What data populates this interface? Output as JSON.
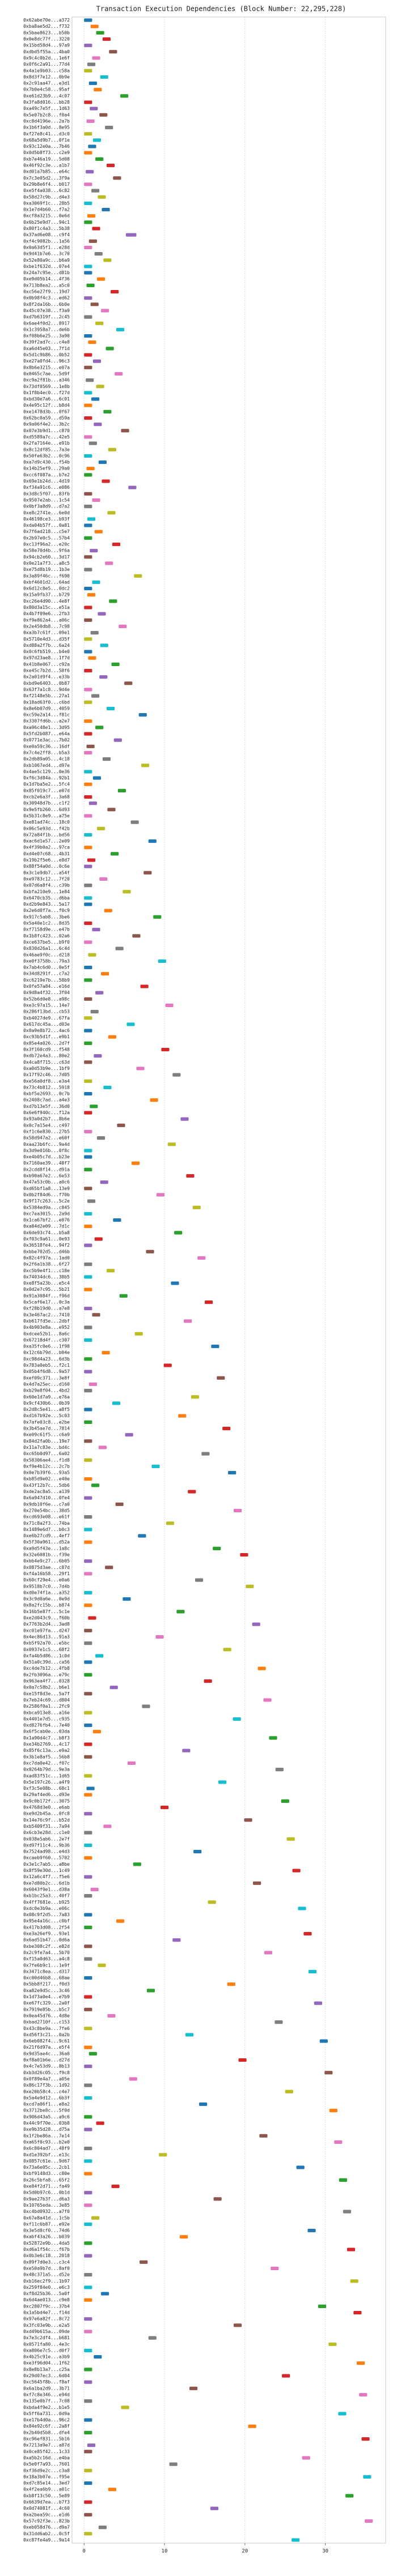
{
  "chart_data": {
    "type": "gantt",
    "title": "Transaction Execution Dependencies (Block Number: 22,295,228)",
    "xlim": [
      -1.5,
      37.5
    ],
    "xticks": [
      0,
      10,
      20,
      30
    ],
    "grid": true,
    "colors": [
      "#1f77b4",
      "#ff7f0e",
      "#2ca02c",
      "#d62728",
      "#9467bd",
      "#8c564b",
      "#e377c2",
      "#7f7f7f",
      "#bcbd22",
      "#17becf"
    ],
    "categories": [
      "0x62abe70e...a372",
      "0xba8ae5d2...f732",
      "0x5bae8623...b50b",
      "0x0e8dc77f...3220",
      "0x15bd58d4...97a9",
      "0xdbd5f55a...4ba0",
      "0x9c4c0b2d...1e6f",
      "0x0f6c2a91...77d4",
      "0x4a1e9b03...c58a",
      "0x8d3f7e12...0b9e",
      "0x2c91aa47...e3d1",
      "0x7b0e4c58...95af",
      "0xe61d23b9...4c07",
      "0x3fa8d016...bb28",
      "0xa49c7e5f...1d63",
      "0x5e07b2c8...f0a4",
      "0xc8d4196e...2a7b",
      "0x1b6f3a0d...8e95",
      "0xf27e8c41...d3c0",
      "0x68a5d9b7...0f1e",
      "0x93c12e0a...7b46",
      "0x0d5b8f73...c2e9",
      "0xb7e46a19...5d08",
      "0x46f92c3e...a1b7",
      "0xd01a7b85...e64c",
      "0x7c3e05d2...3f9a",
      "0x29b8e6f4...b017",
      "0xe5f4a038...6c82",
      "0x58d27c9b...d4e3",
      "0xa3069f1c...28b5",
      "0x1e7d4b60...f7a2",
      "0xcf8a3215...0e6d",
      "0x6b25e9d7...94c1",
      "0x80f1c4a3...5b38",
      "0x37ad6e08...c9f4",
      "0xf4c9082b...1a56",
      "0x0a63d5f1...e28d",
      "0x9d41b7e6...3c70",
      "0x52e80a9c...b6a9",
      "0xbe1f632d...07e4",
      "0x24a7c95e...d81b",
      "0xe9d05b14...4f36",
      "0x713b8ea2...a5c0",
      "0xc56e27f9...19d7",
      "0x0b98f4c3...ed62",
      "0x8f2da16b...6b0e",
      "0x45c07e38...f3a9",
      "0xd7b6319f...2c45",
      "0x6ae4f0d2...8917",
      "0x1c3958a7...de6b",
      "0xf08b6e25...3a90",
      "0x39f2ad7c...c4e8",
      "0xa6d45e03...7f1d",
      "0x5d1c9b86...0b52",
      "0xe27a0fd4...96c3",
      "0x8b6e3215...e07a",
      "0x0465c7ae...5d9f",
      "0xc9a2f81b...a346",
      "0x73df0569...1e8b",
      "0x1f8b4ec0...f27d",
      "0xbd30e7a6...6c01",
      "0x4e95c12f...b8d4",
      "0xe1478d3b...0f67",
      "0x62bc0a59...d59a",
      "0x9a06f4e2...3b2c",
      "0x07e3b9d1...c870",
      "0xd5589a7c...42e5",
      "0x2fa7164e...e91b",
      "0x8c12df85...7a3e",
      "0x50fe63b2...0c96",
      "0xa7d9c430...f54b",
      "0x14b25ef9...29a0",
      "0xcc6f087a...b7e2",
      "0x69e1b24d...4d19",
      "0xf34a91c6...e086",
      "0x3d8c5f07...83fb",
      "0x9507e2ab...1c54",
      "0x0bf3a8d9...d7a2",
      "0xe8c2741e...6e0d",
      "0x46198ce3...b93f",
      "0xda04b57f...0a81",
      "0x7f6ad218...c5e7",
      "0x2b97e0c5...57b4",
      "0xc13f96a2...e20c",
      "0x58e70d4b...9f6a",
      "0x94cb2e60...3d17",
      "0x0e21a7f3...a8c5",
      "0xe75d8b19...1b3e",
      "0x3a89f46c...f690",
      "0xbf4601d2...64ad",
      "0x6d12c8e5...0dc2",
      "0x15a9fb37...b729",
      "0xc26e4d90...4e8f",
      "0x80d3a15c...e51a",
      "0x4b7f09e6...2fb3",
      "0xf9e862a4...a06c",
      "0x2e450db8...7c98",
      "0xa3b7c61f...09e1",
      "0x5710e4d3...d35f",
      "0xd88a2f7b...6a24",
      "0x0c6fb519...b4e0",
      "0x97d23ae8...1f7d",
      "0x41b8e067...c92a",
      "0xe45c7b2d...58f6",
      "0x2a01d9f4...e33b",
      "0xbd9e6403...0b87",
      "0x63f7a1c8...9d4e",
      "0xf2148e5b...27a1",
      "0x18ad63f0...c6bd",
      "0x8e6b07d9...4059",
      "0xc59e2a14...f81c",
      "0x3307fd6b...a2e7",
      "0xa96c48e1...3d95",
      "0x5fd2b087...e64a",
      "0x0771e3ac...7b02",
      "0xe0a59c36...16df",
      "0x7c4e2ff8...b5a3",
      "0x2db89a05...4c18",
      "0xb1067ed4...d97e",
      "0x4ae5c129...0e36",
      "0xf6c3d84a...92b1",
      "0x1d7ba5e2...5fc4",
      "0x85f019c7...e07d",
      "0xcb2e6a3f...3a68",
      "0x30948d7b...c1f2",
      "0x9e5fb260...6d93",
      "0x5b31c8e9...a75e",
      "0xe81ad74c...18c0",
      "0x06c5e93d...f42b",
      "0x72a84f1b...bd56",
      "0xac6d1e57...2e09",
      "0x4f39b0a2...97ca",
      "0xd4e07c68...4b31",
      "0x19b2f5e6...e8d7",
      "0x88f54a0d...0c6e",
      "0x3c1e9db7...a54f",
      "0xe9783c12...7f20",
      "0x07d6a8f4...c39b",
      "0xbfa210e9...1e84",
      "0x6470cb35...d6ba",
      "0xd2b9e843...5a17",
      "0x2e6d0f7a...f0c9",
      "0x917c5ab8...3be6",
      "0x5a40e1c2...8d35",
      "0xf7158d9e...e47b",
      "0x1b8fc423...02a6",
      "0xce637be5...b9f0",
      "0x830d26a1...6c4d",
      "0x46ae9f0c...d218",
      "0xe0f3758b...79a3",
      "0x7ab4c6d0...0e5f",
      "0x34d8291f...c7a2",
      "0xc6219e7b...58b9",
      "0x0fe57a84...e16d",
      "0x9d8a4f32...3f04",
      "0x52b6d0e8...a98c",
      "0xe3c97a15...14e7",
      "0x286f13bd...cb53",
      "0xb4027de9...67fa",
      "0x617dc45a...d03e",
      "0x0a9e8b72...4ac6",
      "0xc93b5d1f...e9b1",
      "0x85e4a026...2d7f",
      "0x3f160cd9...f548",
      "0xdb72e4a3...80e2",
      "0x4ca8f715...c63d",
      "0xa0d53b9e...1bf9",
      "0x17f92c46...7d05",
      "0xe56a0df8...e3a4",
      "0x73c4b812...5918",
      "0xbf5e2693...0c7b",
      "0x2408c7ad...a4e3",
      "0xd7b13e5f...36d0",
      "0x6e6f940c...f12a",
      "0x93a0d2b7...8b6e",
      "0x0c7a15e4...c497",
      "0xf1c6e830...27b5",
      "0x58d947a2...e60f",
      "0xaa23b6fc...9a4d",
      "0x3d9e016b...0f8c",
      "0xe4b05c7d...b23e",
      "0x7160ae39...48f7",
      "0x2cdd8f14...d91a",
      "0xb90a67e2...6e53",
      "0x47e53c0b...a0c6",
      "0xd65bf1a8...13e9",
      "0x0b2f84d6...f70b",
      "0x9f17c263...5c2e",
      "0x5384ed9a...c845",
      "0xc7ea3015...2a9d",
      "0x1ca67bf2...e076",
      "0xa84d2e09...7d1c",
      "0x6de93c74...b5a8",
      "0xf03c9a61...0e93",
      "0x36518fe4...94f2",
      "0xbbe702d5...d46b",
      "0x82c4f97a...1ad0",
      "0x2f6a1b38...6f27",
      "0xc5b9e4f1...c18e",
      "0x74034dc6...38b5",
      "0xe8f5a23b...e5c4",
      "0x0d2e7c95...5b21",
      "0x91a3084f...f96d",
      "0x5caf6e17...0c3a",
      "0xf28b19d0...a7e8",
      "0x3e467ac2...7410",
      "0xb617fd5e...2dbf",
      "0x4b903e8a...e952",
      "0xdcee52b1...8a6c",
      "0x67218d4f...c307",
      "0xa35fc0e6...1f98",
      "0x12c6b79d...b04e",
      "0xc98d4a23...6d3b",
      "0x783a0eb5...f2c1",
      "0x05b4f6d8...9a57",
      "0xef09c371...3e8f",
      "0x4d7a25ec...d160",
      "0xb29e8f04...4bd2",
      "0x60e1d7a9...e76a",
      "0x9cf430b6...0b39",
      "0x2d8c5e41...a8f5",
      "0xd167b92e...5c03",
      "0x7afe03c8...e2be",
      "0x3b45ae7d...7814",
      "0xe09c61f5...c6a9",
      "0x84d2fa0b...19e7",
      "0x11a7c83e...bd4c",
      "0xc65b0d97...6a02",
      "0x58306ae4...f1d8",
      "0xf9e4b12c...2c7b",
      "0x0e7b39f6...93a5",
      "0xb85d9e02...e40e",
      "0x43f12b7c...5db6",
      "0xde2ac8a5...a139",
      "0x6a947d10...0fe4",
      "0x9db10f6e...c7a0",
      "0x270e54bc...38d5",
      "0xcd693e08...e61f",
      "0x71c8a2f3...74ba",
      "0x1489e6d7...b0c3",
      "0xe6b27cd9...4ef7",
      "0x5f30a961...d52a",
      "0xa9d5f43e...1a8c",
      "0x32e6081b...f39e",
      "0xbb4e9c27...6b05",
      "0x0875d3ae...c87d",
      "0xf4a16b58...29f1",
      "0x60cf29e4...e0a6",
      "0x9518b7c0...7d4b",
      "0xd0e74f1a...a352",
      "0x3c9d0a6e...0e9d",
      "0x8a2fc15b...b874",
      "0x16b5e87f...5c1e",
      "0xe2d043c9...f60b",
      "0x7763b2d4...3ad8",
      "0xc01e97fa...d247",
      "0x4ec86d13...91a3",
      "0xb5f92a70...e5bc",
      "0x0937e1c5...68f2",
      "0xfa4b5d86...1c0d",
      "0x51a0c39d...ca56",
      "0xc4de7b12...4fb8",
      "0x2fb3096a...e79c",
      "0x963ea4f7...0328",
      "0x0a7c58b2...b6e1",
      "0xe15f8d3e...5a7f",
      "0x7eb24c69...d804",
      "0x2586f0a1...2fc9",
      "0xbca913e8...a16e",
      "0x4401e7d5...c935",
      "0xd8276fb4...7e40",
      "0x6f5cab0e...03da",
      "0x1a90d4c7...b8f3",
      "0xe34b2769...4c17",
      "0x85f6c13a...e9a2",
      "0x3b1e8af5...56b8",
      "0xc7da0e42...f07c",
      "0x0264b79d...9e3a",
      "0xad83f51c...1d65",
      "0x5e197c26...a4f9",
      "0xf3c5e08b...68c1",
      "0x29af4ed6...d93e",
      "0x9c0b172f...3075",
      "0x4768d3e0...e6ab",
      "0xe9d2b45a...0fc8",
      "0x14e76c9f...b52d",
      "0xb5409f31...7a94",
      "0x6cb3e28d...c1e0",
      "0x038e5ab6...2e7f",
      "0xd97f11c4...9b36",
      "0x7524ad98...e4d3",
      "0xcaeb9f60...5702",
      "0x3e1c7ab5...a8be",
      "0x8f59e30d...1c49",
      "0x12a6c4f7...f5e6",
      "0xe7d80b2c...6d1b",
      "0x6043f9e1...d38a",
      "0xb1bc25a3...40f7",
      "0x4ff7681e...b925",
      "0xdc0e3b9a...e06c",
      "0x08c9f2d5...7a83",
      "0x95e4a16c...c0bf",
      "0x417b3d08...2f54",
      "0xe3a26ef9...93e1",
      "0x6ad51b47...0d6a",
      "0xbe308c2f...e82d",
      "0x2c9fe7a4...5b70",
      "0xf15a0d63...a4c8",
      "0x7fe6b9c1...1e9f",
      "0x3471c8ea...d317",
      "0xc00d46b8...68ae",
      "0x5bb8f217...f0d3",
      "0xa82e9d5c...3c46",
      "0x1d73a0e4...e7b9",
      "0xe67fc329...2a0f",
      "0x7919e85b...b5c7",
      "0x0ea45d76...4d8e",
      "0xbad2710f...c153",
      "0x43c8be9a...7fe6",
      "0xd56f3c21...0a2b",
      "0x6eb082f4...9c61",
      "0x21f6d97a...e5f4",
      "0x9d35ae4c...36a0",
      "0xf8a01b6e...d27d",
      "0x4c7e53d9...8b13",
      "0xb3d26c05...f9c8",
      "0x0f89e4a7...a05e",
      "0x86c17f3b...1d92",
      "0xe20b58c4...c4e7",
      "0x5a4e9d12...6b3f",
      "0xcd7a06f1...e8a2",
      "0x3712be8c...5f0d",
      "0x906d43a5...a9c6",
      "0x44c9f70e...03b8",
      "0xe9b35d28...d75a",
      "0x1f2be86a...7e14",
      "0xa65f0c93...b2e0",
      "0x6c804ad7...48f9",
      "0xd1e392bf...e13c",
      "0x0857c61e...9d67",
      "0x73a6e05c...2cb1",
      "0xbf9148d3...c80e",
      "0x26c5bfa8...65f2",
      "0xe84f2d71...fa49",
      "0x5d0b97c6...0b1d",
      "0x9ae27b3f...d6a3",
      "0x10765eda...3e85",
      "0xc4bd0932...a7f0",
      "0x67e8a41d...1c5b",
      "0xf11c6b87...e92e",
      "0x3e5d8cf0...74d6",
      "0xabf43a26...b039",
      "0x52872e9b...4da5",
      "0xd6a1f54c...f67b",
      "0x0b3e6c18...2018",
      "0x89f7d0e3...c3c4",
      "0xe50a9b7d...8af0",
      "0x48c371a5...d52e",
      "0xb16ec2f9...1b97",
      "0x259f84e0...e6c3",
      "0xf8d25b36...5a0f",
      "0x6d4ae013...c9e8",
      "0xc2807f9c...37b4",
      "0x1a5bd4e7...f14d",
      "0x97e6a82f...8c72",
      "0x3fc03e9b...e2a5",
      "0xd49b615a...09de",
      "0x7e3c2df4...b681",
      "0x0571fa80...4e3c",
      "0xa806e7c5...d0f7",
      "0x4b25c91e...a3b9",
      "0xe3f96d04...1f62",
      "0x8e8b13a7...c25a",
      "0x29d07ec3...6d04",
      "0xc5645f8b...f8af",
      "0x6a1ba2d9...3b71",
      "0xf7c8e346...e94d",
      "0x135e0b7f...7c08",
      "0xbda4f9e2...b1e5",
      "0x5ff6a731...0d9a",
      "0xe17b4d0a...96c2",
      "0x84e92c6f...2a8f",
      "0x2b40d5b8...dfe4",
      "0xc96ef831...5b16",
      "0x7213a9e7...a87d",
      "0x0ce85f42...1c33",
      "0xa5b2c16d...e4ba",
      "0x5e0f7a93...7601",
      "0xf36d9e2c...c3a8",
      "0x18a3b07e...f95e",
      "0xd7c85e14...3ed7",
      "0x4f2ea6b9...a01c",
      "0xb8f13c50...5e89",
      "0x6639d7ea...b7f3",
      "0x0d74081f...4c60",
      "0xa2bea59c...e1d6",
      "0x57c92f3e...823b",
      "0xeb058d76...d9a7",
      "0x31dd6ab2...0c5f",
      "0xc87fe4a9...9a14"
    ],
    "starts": [
      0,
      0.8,
      1.5,
      2.3,
      0,
      3.1,
      1,
      0.4,
      0,
      2,
      0.6,
      1.2,
      4.5,
      0,
      0.7,
      1.9,
      0.3,
      2.6,
      0,
      1.1,
      0.5,
      0,
      1.4,
      2.8,
      0.2,
      3.6,
      0,
      0.9,
      1.7,
      0,
      2.2,
      0.4,
      0,
      1,
      5.2,
      0.6,
      0,
      1.3,
      2.4,
      0,
      0,
      1.6,
      0.3,
      3.3,
      0,
      0.8,
      2.1,
      0,
      1.4,
      4,
      0,
      0.5,
      2.7,
      0,
      1.1,
      0,
      3.8,
      0.2,
      1.5,
      0,
      0.9,
      0,
      2.4,
      0,
      1.2,
      4.6,
      0,
      0.6,
      3,
      0,
      1.8,
      0.3,
      0,
      2.2,
      5.5,
      0,
      1,
      0,
      2.9,
      0.4,
      0,
      1.3,
      0,
      3.5,
      0.7,
      0,
      2.6,
      0,
      6.2,
      1,
      0,
      0.4,
      3.1,
      0,
      1.7,
      0,
      4.3,
      0.8,
      0,
      2,
      0,
      0.5,
      3.4,
      0,
      1.9,
      5,
      0,
      0.9,
      0,
      2.8,
      6.8,
      0,
      1.4,
      0,
      3.7,
      0.3,
      0,
      2.3,
      7.1,
      0,
      1.1,
      0,
      4.2,
      0,
      0.6,
      2.9,
      0,
      5.8,
      1.6,
      0,
      8,
      0,
      3.3,
      0.4,
      0,
      7.4,
      1.9,
      0,
      4.8,
      0,
      0,
      2.5,
      8.6,
      0,
      1,
      6,
      0,
      3.9,
      0.5,
      9.2,
      0,
      2.1,
      0,
      7,
      1.4,
      0,
      10.1,
      0.8,
      0,
      5.3,
      0,
      3,
      0,
      9.6,
      1.2,
      0,
      6.5,
      11,
      0,
      2.4,
      0,
      8.2,
      0.7,
      0,
      12,
      4.1,
      0,
      1.6,
      10.4,
      0,
      0,
      5.9,
      0,
      12.7,
      2,
      0,
      9,
      0.4,
      13.5,
      0,
      3.6,
      0,
      11.2,
      1.3,
      0,
      7.7,
      14.1,
      0,
      2.8,
      0,
      10.8,
      0,
      4.4,
      15,
      0,
      1,
      12.4,
      0,
      6.3,
      0,
      15.8,
      2.2,
      0,
      9.9,
      0,
      16.5,
      0.6,
      0,
      13.3,
      3.5,
      0,
      11.7,
      0,
      17.2,
      5.1,
      0,
      1.8,
      14.6,
      0,
      8.4,
      17.9,
      0,
      0.9,
      12.9,
      0,
      3.9,
      18.6,
      0,
      10.2,
      0,
      6.7,
      0,
      16,
      19.4,
      0,
      2.6,
      0,
      13.8,
      20.1,
      0,
      4.8,
      0,
      11.5,
      0.5,
      20.9,
      0,
      8.9,
      0,
      17.3,
      1.4,
      0,
      21.6,
      0,
      14.9,
      3.2,
      0,
      22.3,
      7.2,
      0,
      18.5,
      0,
      1.1,
      23,
      0,
      12.2,
      0,
      5.4,
      23.8,
      0,
      16.7,
      0.3,
      0,
      24.5,
      9.5,
      0,
      19.9,
      2.4,
      0,
      25.2,
      0,
      13.6,
      0,
      6.1,
      25.9,
      0,
      21,
      0.8,
      0,
      15.4,
      26.6,
      0,
      4,
      0,
      27.3,
      11,
      0,
      22.4,
      0,
      1.7,
      27.9,
      0,
      17.8,
      7.8,
      0,
      28.6,
      0,
      2.9,
      23.7,
      0,
      12.6,
      29.3,
      0,
      0.6,
      19.2,
      0,
      29.9,
      5.6,
      0,
      25,
      0,
      14.3,
      30.5,
      0,
      1.5,
      0,
      21.8,
      31.1,
      0,
      9.3,
      0,
      26.4,
      0,
      31.7,
      3.4,
      0,
      16.1,
      0,
      32.2,
      0.9,
      0,
      27.8,
      11.9,
      0,
      32.7,
      0,
      6.9,
      23.2,
      0,
      33.1,
      0,
      2.1,
      0,
      29.1,
      33.5,
      0,
      18.6,
      0,
      8,
      30.4,
      0,
      1.2,
      33.9,
      0,
      24.6,
      0,
      13.1,
      34.2,
      0,
      4.6,
      31.6,
      0,
      20.4,
      0,
      34.5,
      0.4,
      0,
      27.1,
      10.6,
      0,
      34.7,
      0,
      3,
      32.5,
      0,
      15.7,
      0,
      34.9,
      1.8,
      0,
      25.8
    ],
    "durations": [
      1,
      1,
      1,
      1,
      1,
      1,
      1,
      1,
      1,
      1,
      1,
      1,
      1,
      1,
      1,
      1,
      1,
      1,
      1,
      1,
      1,
      1,
      1,
      1,
      1,
      1,
      1,
      1,
      1,
      1,
      1,
      1,
      1,
      1,
      1.3,
      1,
      1,
      1,
      1,
      1,
      1,
      1,
      1,
      1,
      1,
      1,
      1,
      1,
      1,
      1,
      1,
      1,
      1,
      1,
      1,
      1,
      1,
      1,
      1,
      1,
      1,
      1,
      1,
      1,
      1,
      1,
      1,
      1,
      1,
      1,
      1,
      1,
      1,
      1,
      1,
      1,
      1,
      1,
      1,
      1,
      1,
      1,
      1,
      1,
      1,
      1,
      1,
      1,
      1,
      1,
      1,
      1,
      1,
      1,
      1,
      1,
      1,
      1,
      1,
      1,
      1,
      1,
      1,
      1,
      1,
      1,
      1,
      1,
      1,
      1,
      1,
      1,
      1,
      1,
      1,
      1,
      1,
      1,
      1,
      1,
      1,
      1,
      1,
      1,
      1,
      1,
      1,
      1,
      1,
      1,
      1,
      1,
      1,
      1,
      1,
      1,
      1,
      1,
      1,
      1,
      1,
      1,
      1,
      1,
      1,
      1,
      1,
      1,
      1,
      1,
      1,
      1,
      1,
      1,
      1,
      1,
      1,
      1,
      1,
      1,
      1,
      1,
      1,
      1,
      1,
      1,
      1,
      1,
      1,
      1,
      1,
      1,
      1,
      1,
      1,
      1,
      1,
      1,
      1,
      1,
      1,
      1,
      1,
      1,
      1,
      1,
      1,
      1,
      1,
      1,
      1,
      1,
      1,
      1,
      1,
      1,
      1,
      1,
      1,
      1,
      1,
      1,
      1,
      1,
      1,
      1,
      1,
      1,
      1,
      1,
      1,
      1,
      1,
      1,
      1,
      1,
      1,
      1,
      1,
      1,
      1,
      1,
      1,
      1,
      1,
      1,
      1,
      1,
      1,
      1,
      1,
      1,
      1,
      1,
      1,
      1,
      1,
      1,
      1,
      1,
      1,
      1,
      1,
      1,
      1,
      1,
      1,
      1,
      1,
      1,
      1,
      1,
      1,
      1,
      1,
      1,
      1,
      1,
      1,
      1,
      1,
      1,
      1,
      1,
      1,
      1,
      1,
      1,
      1,
      1,
      1,
      1,
      1,
      1,
      1,
      1,
      1,
      1,
      1,
      1,
      1,
      1,
      1,
      1,
      1,
      1,
      1,
      1,
      1,
      1,
      1,
      1,
      1,
      1,
      1,
      1,
      1,
      1,
      1,
      1,
      1,
      1,
      1,
      1,
      1,
      1,
      1,
      1,
      1,
      1,
      1,
      1,
      1,
      1,
      1,
      1,
      1,
      1,
      1,
      1,
      1,
      1,
      1,
      1,
      1,
      1,
      1,
      1,
      1,
      1,
      1,
      1,
      1,
      1,
      1,
      1,
      1,
      1,
      1,
      1,
      1,
      1,
      1,
      1,
      1,
      1,
      1,
      1,
      1,
      1,
      1,
      1,
      1,
      1,
      1,
      1,
      1,
      1,
      1,
      1,
      1,
      1,
      1,
      1,
      1,
      1,
      1,
      1,
      1,
      1,
      1,
      1,
      1,
      1,
      1,
      1,
      1,
      1,
      1,
      1,
      1,
      1,
      1,
      1,
      1,
      1,
      1,
      1,
      1,
      1,
      1,
      1,
      1,
      1,
      1,
      1,
      1,
      1,
      1,
      1
    ]
  }
}
